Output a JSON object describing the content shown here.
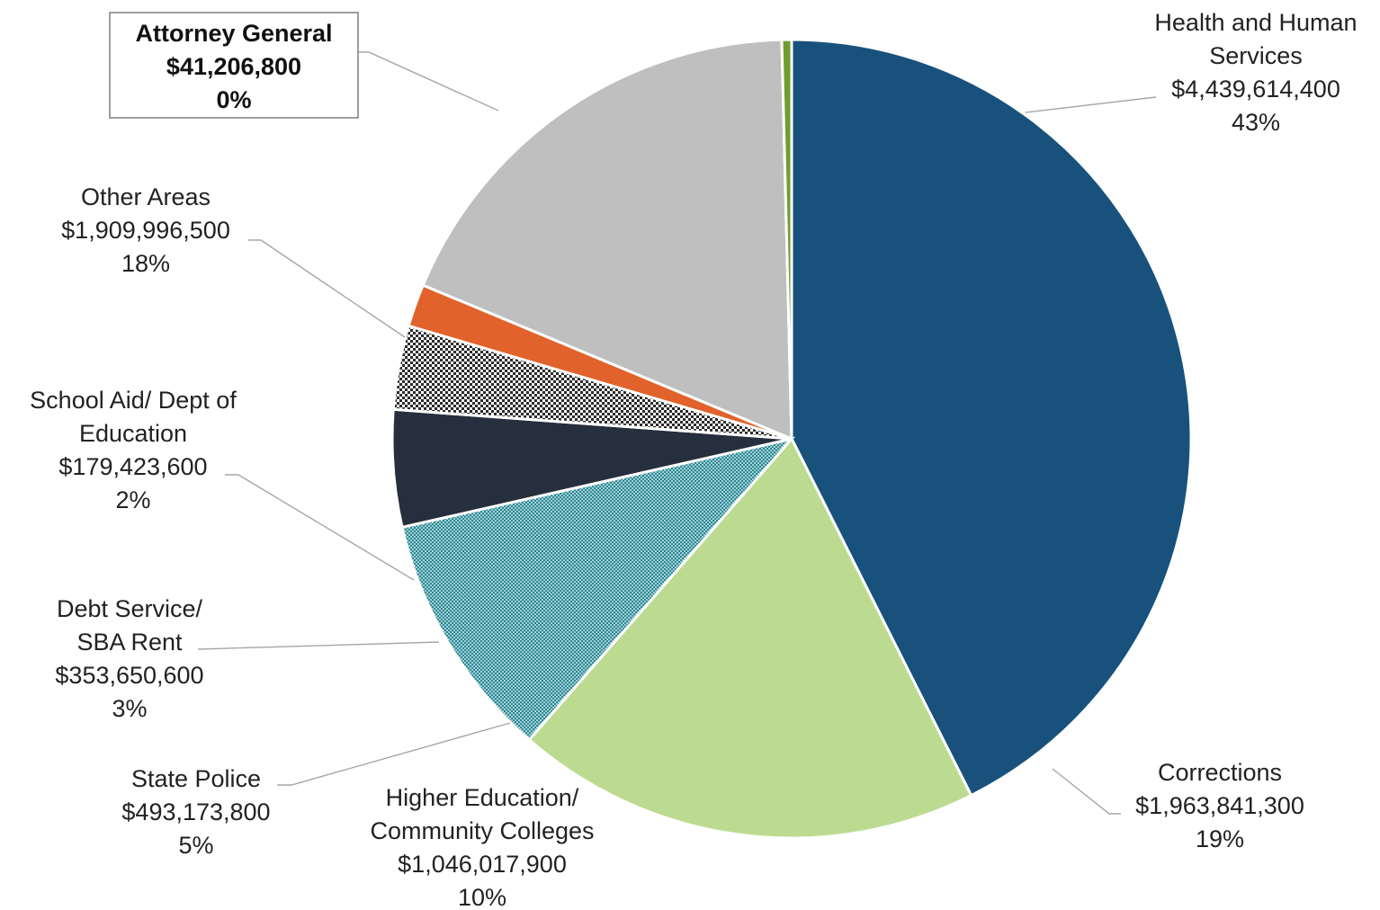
{
  "chart_data": {
    "type": "pie",
    "title": "",
    "start_angle_deg": 0,
    "direction": "clockwise",
    "slices": [
      {
        "name": "Health and Human Services",
        "lines": [
          "Health and Human",
          "Services"
        ],
        "amount": "$4,439,614,400",
        "percent": "43%",
        "value": 4439614400,
        "color": "#18527c",
        "pattern": "solid",
        "callout": false
      },
      {
        "name": "Corrections",
        "lines": [
          "Corrections"
        ],
        "amount": "$1,963,841,300",
        "percent": "19%",
        "value": 1963841300,
        "color": "#bcdb90",
        "pattern": "solid",
        "callout": false
      },
      {
        "name": "Higher Education/ Community Colleges",
        "lines": [
          "Higher Education/",
          "Community Colleges"
        ],
        "amount": "$1,046,017,900",
        "percent": "10%",
        "value": 1046017900,
        "color": "#2a8a96",
        "pattern": "dots",
        "callout": false
      },
      {
        "name": "State Police",
        "lines": [
          "State Police"
        ],
        "amount": "$493,173,800",
        "percent": "5%",
        "value": 493173800,
        "color": "#262f3d",
        "pattern": "solid",
        "callout": false
      },
      {
        "name": "Debt Service/ SBA Rent",
        "lines": [
          "Debt Service/",
          "SBA Rent"
        ],
        "amount": "$353,650,600",
        "percent": "3%",
        "value": 353650600,
        "color": "#2b2b2b",
        "pattern": "checker",
        "callout": false
      },
      {
        "name": "School Aid/ Dept of Education",
        "lines": [
          "School Aid/ Dept of",
          "Education"
        ],
        "amount": "$179,423,600",
        "percent": "2%",
        "value": 179423600,
        "color": "#e2622b",
        "pattern": "solid",
        "callout": false
      },
      {
        "name": "Other Areas",
        "lines": [
          "Other Areas"
        ],
        "amount": "$1,909,996,500",
        "percent": "18%",
        "value": 1909996500,
        "color": "#bfbfbf",
        "pattern": "solid",
        "callout": false
      },
      {
        "name": "Attorney General",
        "lines": [
          "Attorney General"
        ],
        "amount": "$41,206,800",
        "percent": "0%",
        "value": 41206800,
        "color": "#6f9e2f",
        "pattern": "solid",
        "callout": true
      }
    ]
  }
}
